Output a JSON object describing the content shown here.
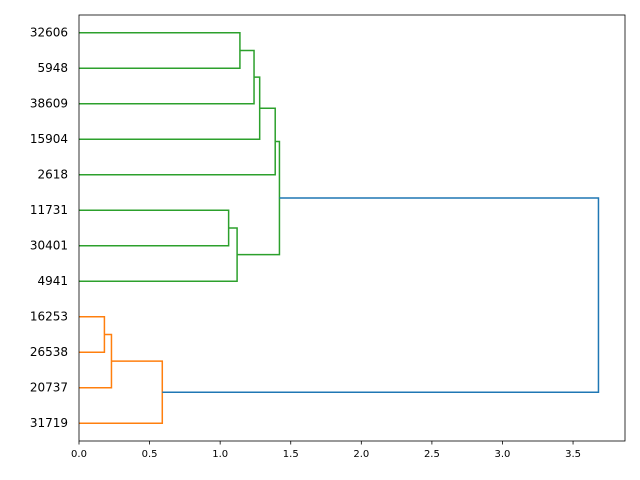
{
  "chart_data": {
    "type": "dendrogram",
    "xlim": [
      0,
      3.868
    ],
    "xticks": [
      {
        "value": 0,
        "label": "0.0"
      },
      {
        "value": 0.5,
        "label": "0.5"
      },
      {
        "value": 1,
        "label": "1.0"
      },
      {
        "value": 1.5,
        "label": "1.5"
      },
      {
        "value": 2,
        "label": "2.0"
      },
      {
        "value": 2.5,
        "label": "2.5"
      },
      {
        "value": 3,
        "label": "3.0"
      },
      {
        "value": 3.5,
        "label": "3.5"
      }
    ],
    "tree": {
      "height": 3.68,
      "color": "#1f77b4",
      "children": [
        {
          "height": 1.42,
          "color": "#2ca02c",
          "children": [
            {
              "height": 1.39,
              "color": "#2ca02c",
              "children": [
                {
                  "height": 1.28,
                  "color": "#2ca02c",
                  "children": [
                    {
                      "height": 1.24,
                      "color": "#2ca02c",
                      "children": [
                        {
                          "height": 1.14,
                          "color": "#2ca02c",
                          "children": [
                            "32606",
                            "5948"
                          ]
                        },
                        "38609"
                      ]
                    },
                    "15904"
                  ]
                },
                "2618"
              ]
            },
            {
              "height": 1.12,
              "color": "#2ca02c",
              "children": [
                {
                  "height": 1.06,
                  "color": "#2ca02c",
                  "children": [
                    "11731",
                    "30401"
                  ]
                },
                "4941"
              ]
            }
          ]
        },
        {
          "height": 0.59,
          "color": "#ff7f0e",
          "children": [
            {
              "height": 0.23,
              "color": "#ff7f0e",
              "children": [
                {
                  "height": 0.18,
                  "color": "#ff7f0e",
                  "children": [
                    "16253",
                    "26538"
                  ]
                },
                "20737"
              ]
            },
            "31719"
          ]
        }
      ]
    }
  }
}
